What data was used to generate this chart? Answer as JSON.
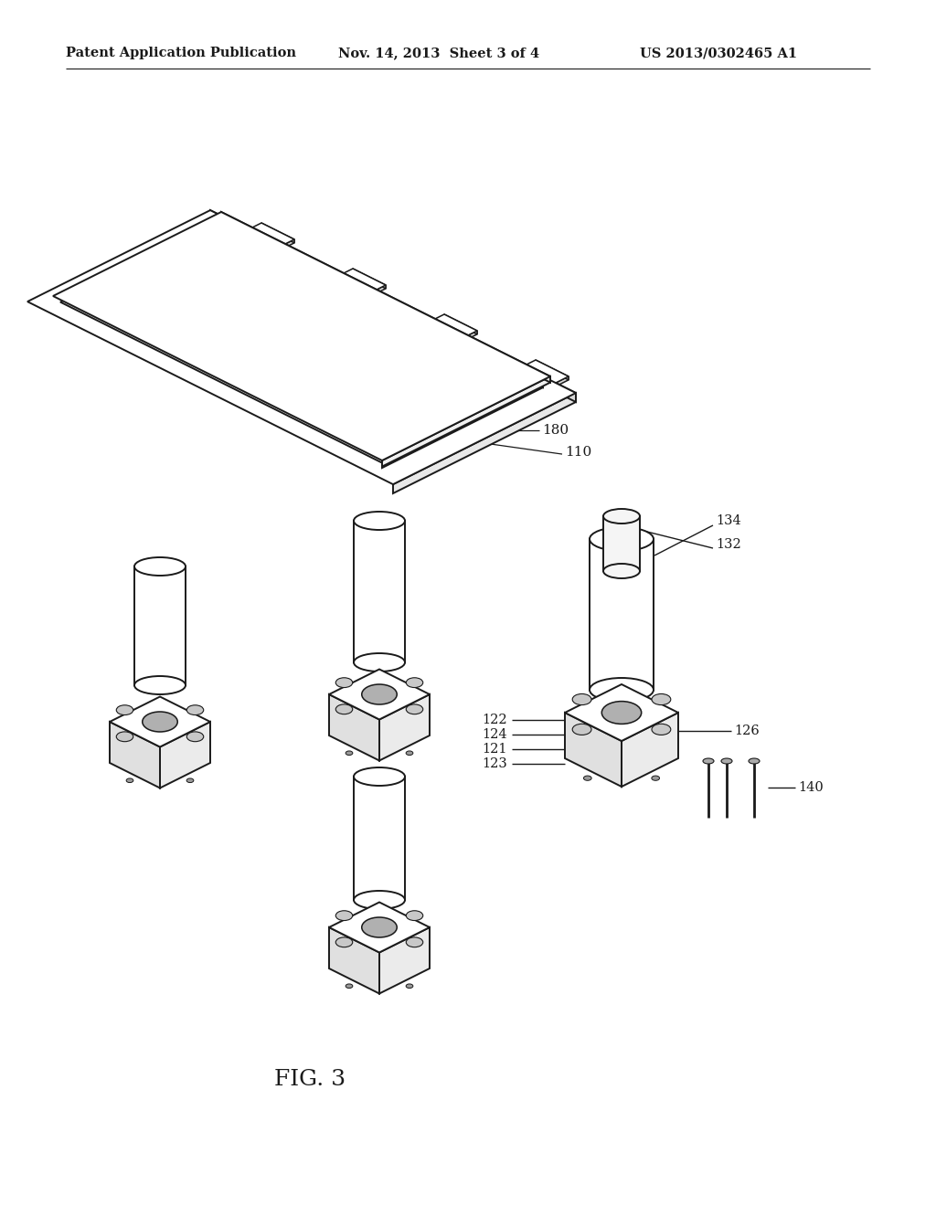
{
  "bg_color": "#ffffff",
  "header_left": "Patent Application Publication",
  "header_center": "Nov. 14, 2013  Sheet 3 of 4",
  "header_right": "US 2013/0302465 A1",
  "header_fontsize": 10.5,
  "caption": "FIG. 3",
  "caption_fontsize": 18,
  "line_color": "#1a1a1a",
  "line_width": 1.4
}
